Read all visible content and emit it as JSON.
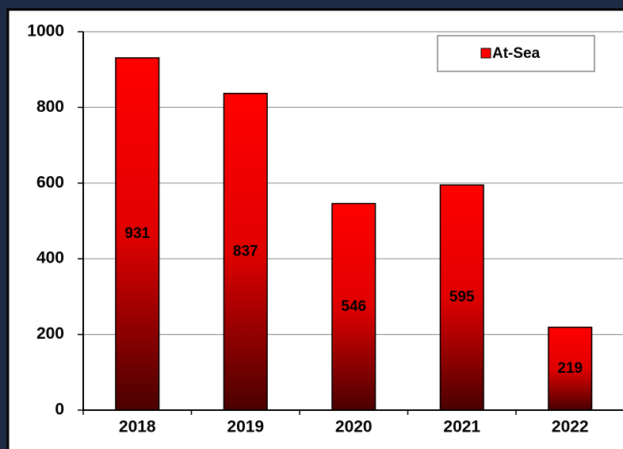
{
  "chart_data": {
    "type": "bar",
    "categories": [
      "2018",
      "2019",
      "2020",
      "2021",
      "2022"
    ],
    "series": [
      {
        "name": "At-Sea",
        "color": "#ff0000",
        "values": [
          931,
          837,
          546,
          595,
          219
        ]
      }
    ],
    "ylim": [
      0,
      1000
    ],
    "yticks": [
      0,
      200,
      400,
      600,
      800,
      1000
    ],
    "grid": true,
    "legend": "upper right"
  }
}
